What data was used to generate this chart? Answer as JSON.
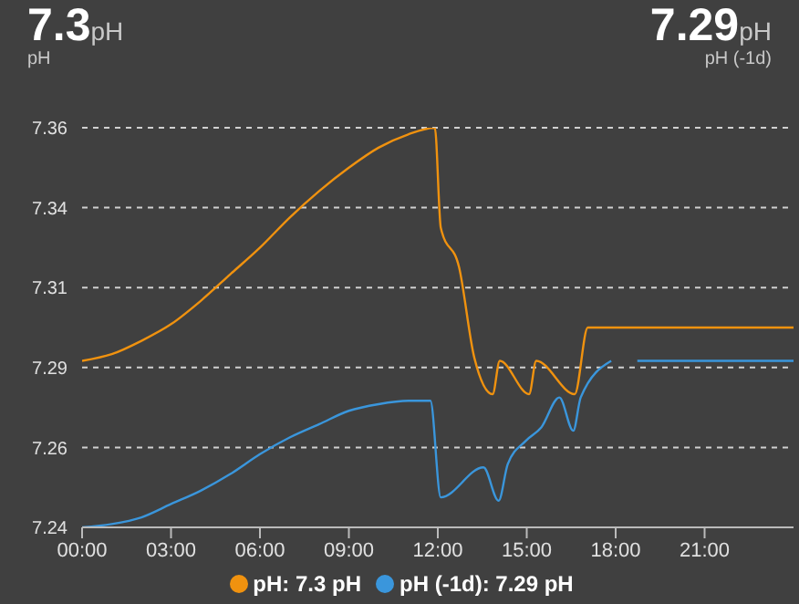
{
  "chart_data": {
    "type": "line",
    "annotations": [
      "7.3",
      "pH",
      "pH",
      "7.29",
      "pH",
      "pH (-1d)"
    ],
    "xlim": [
      0,
      24
    ],
    "xticks": [
      {
        "value": 0,
        "label": "00:00"
      },
      {
        "value": 3,
        "label": "03:00"
      },
      {
        "value": 6,
        "label": "06:00"
      },
      {
        "value": 9,
        "label": "09:00"
      },
      {
        "value": 12,
        "label": "12:00"
      },
      {
        "value": 15,
        "label": "15:00"
      },
      {
        "value": 18,
        "label": "18:00"
      },
      {
        "value": 21,
        "label": "21:00"
      }
    ],
    "ylim": [
      7.24,
      7.36
    ],
    "yticks": [
      7.24,
      {
        "value": 7.264,
        "label": "7.26"
      },
      {
        "value": 7.288,
        "label": "7.29"
      },
      {
        "value": 7.312,
        "label": "7.31"
      },
      {
        "value": 7.336,
        "label": "7.34"
      },
      7.36
    ],
    "grid": "y",
    "legend": "bottom",
    "marker": "none",
    "line_style": "solid",
    "series": [
      {
        "name": "pH: 7.3 pH",
        "color": "#f0920f",
        "x": [
          0,
          1,
          2,
          3,
          4,
          5,
          6,
          7,
          8,
          9,
          10,
          11,
          11.9,
          12.1,
          12.72,
          13.23,
          13.85,
          14.09,
          15.08,
          15.32,
          16.62,
          17.06,
          24
        ],
        "values": [
          7.29,
          7.292,
          7.296,
          7.301,
          7.308,
          7.316,
          7.324,
          7.333,
          7.341,
          7.348,
          7.354,
          7.358,
          7.36,
          7.33,
          7.318,
          7.291,
          7.28,
          7.29,
          7.28,
          7.29,
          7.28,
          7.3,
          7.3
        ]
      },
      {
        "name": "pH (-1d): 7.29 pH",
        "color": "#3a96dc",
        "x": [
          0,
          1,
          2,
          3,
          4,
          5,
          6,
          7,
          8,
          9,
          10,
          11,
          11.75,
          12.1,
          13.54,
          14.05,
          14.36,
          14.97,
          15.49,
          16.1,
          16.57,
          16.82,
          17.85,
          18.3,
          18.73,
          24
        ],
        "values": [
          7.24,
          7.241,
          7.243,
          7.247,
          7.251,
          7.256,
          7.262,
          7.267,
          7.271,
          7.275,
          7.277,
          7.278,
          7.278,
          7.249,
          7.258,
          7.248,
          7.259,
          7.266,
          7.27,
          7.279,
          7.269,
          7.279,
          7.29,
          null,
          7.29,
          7.29
        ]
      }
    ]
  }
}
